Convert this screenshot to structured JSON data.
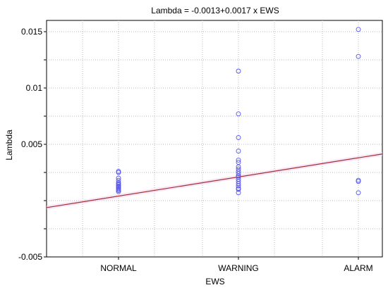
{
  "chart_data": {
    "type": "scatter",
    "title": "Lambda = -0.0013+0.0017 x EWS",
    "xlabel": "EWS",
    "ylabel": "Lambda",
    "categories": [
      "NORMAL",
      "WARNING",
      "ALARM"
    ],
    "x_positions": [
      1,
      2,
      3
    ],
    "xlim": [
      0.4,
      3.2
    ],
    "ylim": [
      -0.005,
      0.016
    ],
    "yticks": [
      -0.005,
      0.005,
      0.01,
      0.015
    ],
    "ytick_labels": [
      "-0.005",
      "0.005",
      "0.01",
      "0.015"
    ],
    "grid": true,
    "points": [
      {
        "x": 1,
        "y": 0.0026
      },
      {
        "x": 1,
        "y": 0.0025
      },
      {
        "x": 1,
        "y": 0.002
      },
      {
        "x": 1,
        "y": 0.0018
      },
      {
        "x": 1,
        "y": 0.0016
      },
      {
        "x": 1,
        "y": 0.0015
      },
      {
        "x": 1,
        "y": 0.0014
      },
      {
        "x": 1,
        "y": 0.0013
      },
      {
        "x": 1,
        "y": 0.0012
      },
      {
        "x": 1,
        "y": 0.0011
      },
      {
        "x": 1,
        "y": 0.001
      },
      {
        "x": 1,
        "y": 0.0009
      },
      {
        "x": 1,
        "y": 0.0008
      },
      {
        "x": 2,
        "y": 0.0115
      },
      {
        "x": 2,
        "y": 0.0077
      },
      {
        "x": 2,
        "y": 0.0056
      },
      {
        "x": 2,
        "y": 0.0044
      },
      {
        "x": 2,
        "y": 0.0036
      },
      {
        "x": 2,
        "y": 0.0034
      },
      {
        "x": 2,
        "y": 0.003
      },
      {
        "x": 2,
        "y": 0.0028
      },
      {
        "x": 2,
        "y": 0.0026
      },
      {
        "x": 2,
        "y": 0.0024
      },
      {
        "x": 2,
        "y": 0.0022
      },
      {
        "x": 2,
        "y": 0.0021
      },
      {
        "x": 2,
        "y": 0.0019
      },
      {
        "x": 2,
        "y": 0.0017
      },
      {
        "x": 2,
        "y": 0.0015
      },
      {
        "x": 2,
        "y": 0.0013
      },
      {
        "x": 2,
        "y": 0.0011
      },
      {
        "x": 2,
        "y": 0.001
      },
      {
        "x": 2,
        "y": 0.0007
      },
      {
        "x": 3,
        "y": 0.0152
      },
      {
        "x": 3,
        "y": 0.0128
      },
      {
        "x": 3,
        "y": 0.0018
      },
      {
        "x": 3,
        "y": 0.0017
      },
      {
        "x": 3,
        "y": 0.0007
      }
    ],
    "regression": {
      "intercept": -0.0013,
      "slope": 0.0017
    }
  },
  "colors": {
    "point": "#5555ee",
    "fit_line": "#a0302a",
    "band": "#f3d2f3",
    "frame": "#000000"
  }
}
